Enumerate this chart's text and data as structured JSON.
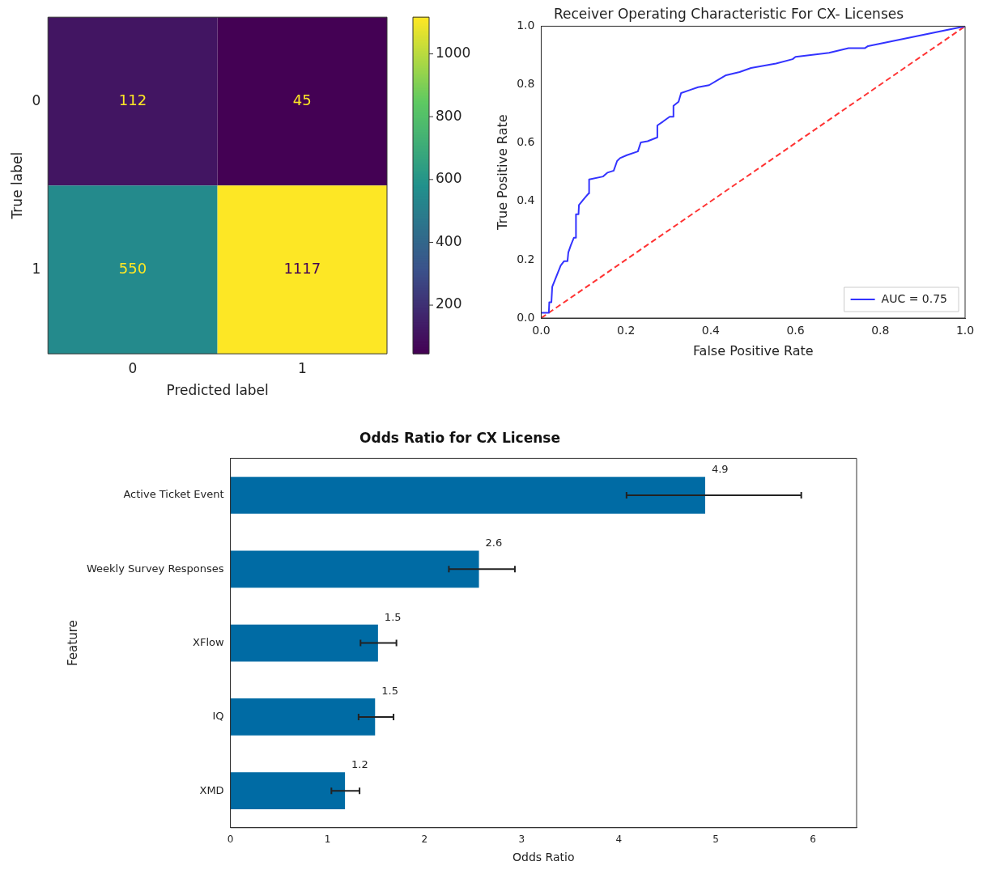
{
  "chart_data": [
    {
      "type": "heatmap",
      "xlabel": "Predicted label",
      "ylabel": "True label",
      "categories": [
        "0",
        "1"
      ],
      "y_categories": [
        "0",
        "1"
      ],
      "cells": [
        [
          112,
          45
        ],
        [
          550,
          1117
        ]
      ],
      "data_labels": true,
      "clim": [
        45,
        1117
      ],
      "cticks": [
        200,
        400,
        600,
        800,
        1000
      ]
    },
    {
      "type": "line",
      "title": "Receiver Operating Characteristic For CX- Licenses",
      "xlabel": "False Positive Rate",
      "ylabel": "True Positive Rate",
      "series": [
        {
          "name": "AUC = 0.75",
          "color": "#3333ff",
          "x": [
            0,
            0.018,
            0.019,
            0.024,
            0.026,
            0.046,
            0.054,
            0.062,
            0.064,
            0.07,
            0.077,
            0.082,
            0.082,
            0.088,
            0.089,
            0.103,
            0.112,
            0.113,
            0.146,
            0.156,
            0.171,
            0.179,
            0.186,
            0.202,
            0.228,
            0.235,
            0.251,
            0.274,
            0.274,
            0.287,
            0.303,
            0.312,
            0.312,
            0.324,
            0.33,
            0.35,
            0.37,
            0.396,
            0.419,
            0.436,
            0.468,
            0.495,
            0.554,
            0.593,
            0.6,
            0.679,
            0.725,
            0.764,
            0.771,
            1
          ],
          "values": [
            0.018,
            0.018,
            0.054,
            0.054,
            0.107,
            0.18,
            0.195,
            0.195,
            0.225,
            0.25,
            0.275,
            0.275,
            0.356,
            0.356,
            0.387,
            0.412,
            0.427,
            0.475,
            0.485,
            0.498,
            0.505,
            0.538,
            0.548,
            0.558,
            0.571,
            0.602,
            0.606,
            0.619,
            0.66,
            0.673,
            0.69,
            0.69,
            0.727,
            0.741,
            0.771,
            0.781,
            0.791,
            0.798,
            0.818,
            0.832,
            0.843,
            0.857,
            0.872,
            0.887,
            0.895,
            0.909,
            0.925,
            0.925,
            0.932,
            1
          ]
        },
        {
          "color": "#ff3333",
          "line_style": "dashed",
          "x": [
            0,
            1
          ],
          "values": [
            0,
            1
          ]
        }
      ],
      "xlim": [
        0,
        1
      ],
      "ylim": [
        0,
        1
      ],
      "xticks": [
        {
          "value": 0,
          "label": "0.0"
        },
        {
          "value": 0.2,
          "label": "0.2"
        },
        {
          "value": 0.4,
          "label": "0.4"
        },
        {
          "value": 0.6,
          "label": "0.6"
        },
        {
          "value": 0.8,
          "label": "0.8"
        },
        {
          "value": 1,
          "label": "1.0"
        }
      ],
      "yticks": [
        {
          "value": 0,
          "label": "0.0"
        },
        {
          "value": 0.2,
          "label": "0.2"
        },
        {
          "value": 0.4,
          "label": "0.4"
        },
        {
          "value": 0.6,
          "label": "0.6"
        },
        {
          "value": 0.8,
          "label": "0.8"
        },
        {
          "value": 1,
          "label": "1.0"
        }
      ],
      "marker": "none",
      "legend": "bottom right"
    },
    {
      "type": "bar",
      "orientation": "horizontal",
      "title": "Odds Ratio for CX License",
      "xlabel": "Odds Ratio",
      "ylabel": "Feature",
      "categories": [
        "Active Ticket Event",
        "Weekly Survey Responses",
        "XFlow",
        "IQ",
        "XMD"
      ],
      "values": [
        4.89,
        2.56,
        1.52,
        1.49,
        1.18
      ],
      "value_labels": [
        "4.9",
        "2.6",
        "1.5",
        "1.5",
        "1.2"
      ],
      "errors": [
        [
          4.08,
          5.88
        ],
        [
          2.25,
          2.93
        ],
        [
          1.34,
          1.71
        ],
        [
          1.32,
          1.68
        ],
        [
          1.04,
          1.33
        ]
      ],
      "color": "#006ba4",
      "xlim": [
        0,
        6.45
      ],
      "xticks": [
        0,
        1,
        2,
        3,
        4,
        5,
        6
      ]
    }
  ]
}
